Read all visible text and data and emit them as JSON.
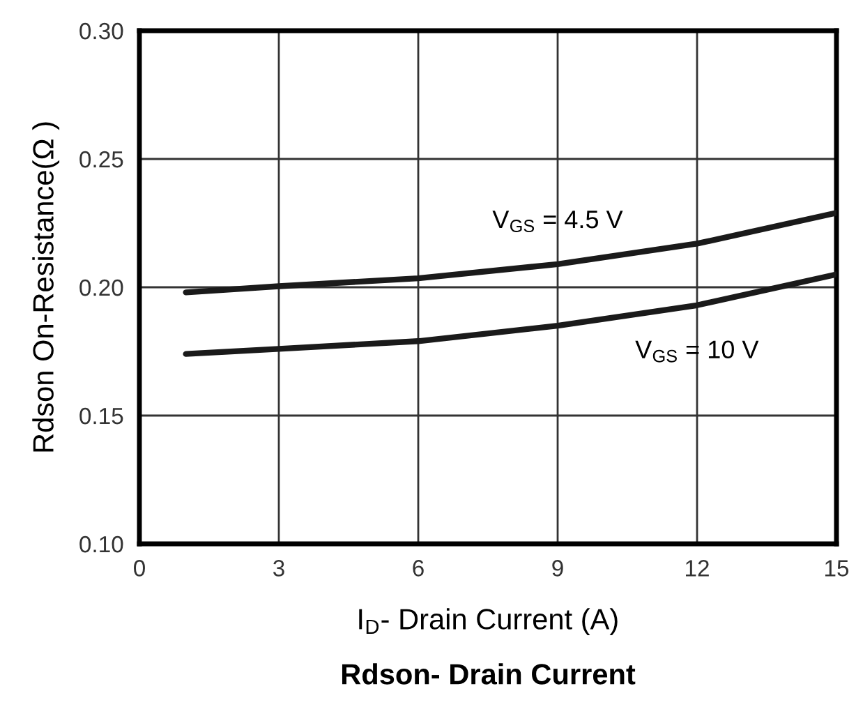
{
  "chart_data": {
    "type": "line",
    "title": "Rdson- Drain Current",
    "xlabel": "I$_{D}$- Drain Current (A)",
    "ylabel": "Rdson On-Resistance(Ω )",
    "x": [
      1,
      3,
      6,
      9,
      12,
      15
    ],
    "series": [
      {
        "name": "V$_{GS}$ = 4.5 V",
        "color": "#1a1a1a",
        "values": [
          0.198,
          0.2004,
          0.2035,
          0.209,
          0.217,
          0.229
        ]
      },
      {
        "name": "V$_{GS}$ = 10 V",
        "color": "#1a1a1a",
        "values": [
          0.174,
          0.176,
          0.179,
          0.185,
          0.193,
          0.205
        ]
      }
    ],
    "xlim": [
      0,
      15
    ],
    "xticks": [
      0,
      3,
      6,
      9,
      12,
      15
    ],
    "ylim": [
      0.1,
      0.3
    ],
    "yticks": [
      {
        "value": 0.1,
        "label": "0.10"
      },
      {
        "value": 0.15,
        "label": "0.15"
      },
      {
        "value": 0.2,
        "label": "0.20"
      },
      {
        "value": 0.25,
        "label": "0.25"
      },
      {
        "value": 0.3,
        "label": "0.30"
      }
    ],
    "grid": true,
    "marker": "none",
    "line_style": "solid"
  }
}
